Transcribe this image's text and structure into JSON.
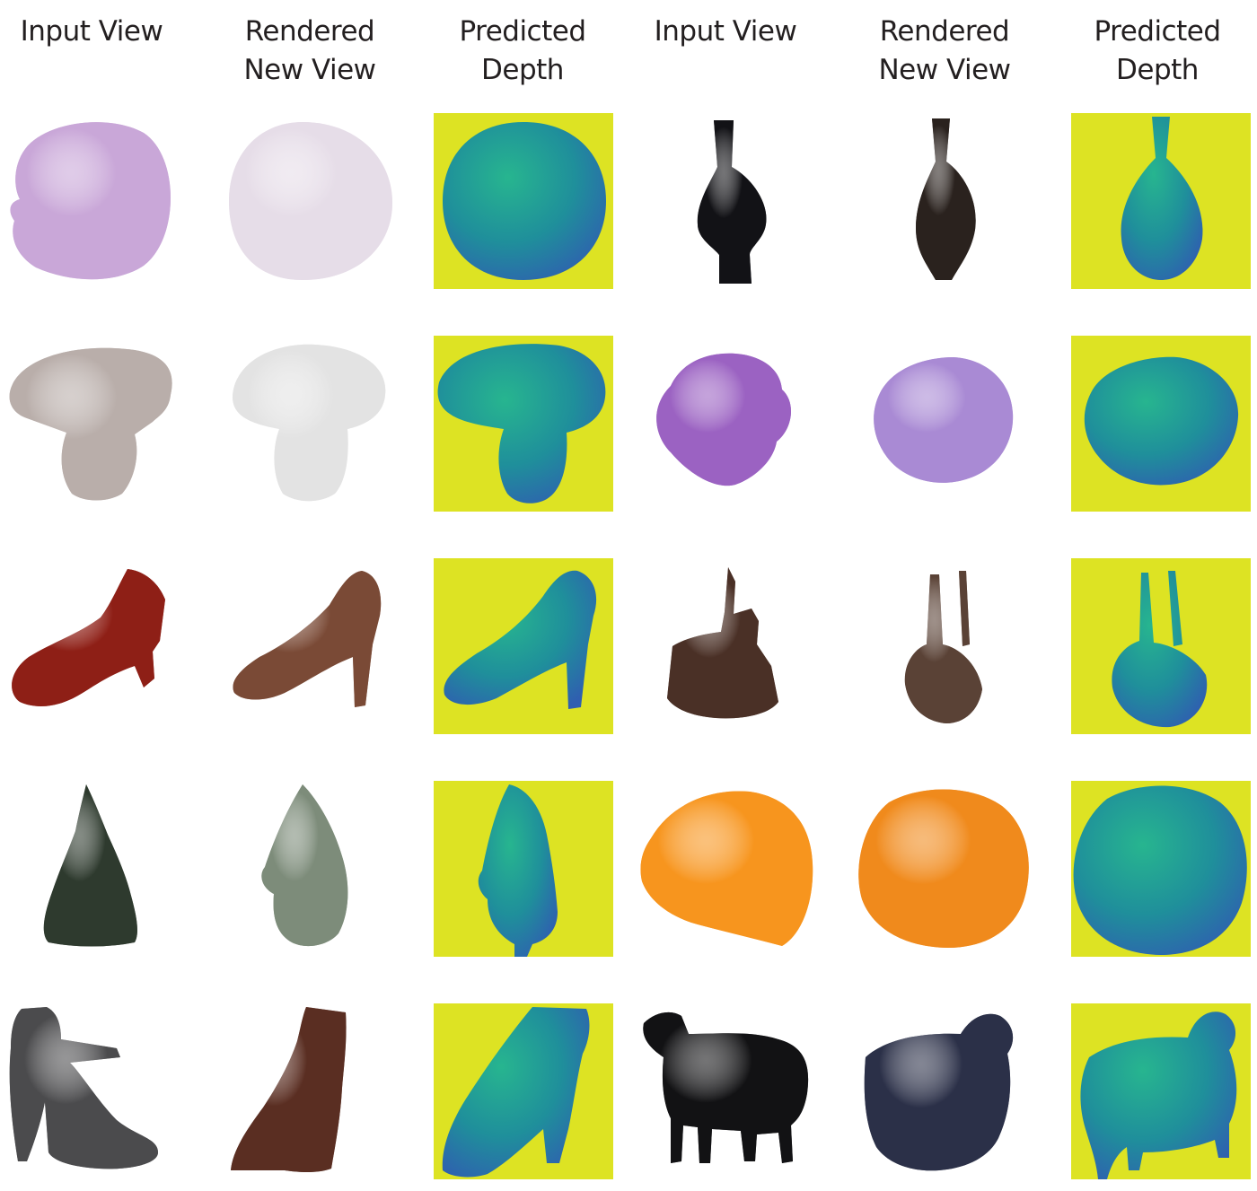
{
  "headers": [
    {
      "lines": [
        "Input View"
      ]
    },
    {
      "lines": [
        "Rendered",
        "New View"
      ]
    },
    {
      "lines": [
        "Predicted",
        "Depth"
      ]
    },
    {
      "lines": [
        "Input View"
      ]
    },
    {
      "lines": [
        "Rendered",
        "New View"
      ]
    },
    {
      "lines": [
        "Predicted",
        "Depth"
      ]
    }
  ],
  "colors": {
    "depth_background": "#dde323",
    "depth_far": "#27b58f",
    "depth_mid": "#1f8f9b",
    "depth_near": "#2f5fb0"
  },
  "rows": [
    {
      "left": {
        "object": "balloon-sphere",
        "input_color": "#c9a7d8",
        "render_color": "#e6dde8"
      },
      "right": {
        "object": "vase",
        "input_color": "#121216",
        "render_color": "#2a221e"
      }
    },
    {
      "left": {
        "object": "mushroom",
        "input_color": "#b9aeaa",
        "render_color": "#e3e3e3"
      },
      "right": {
        "object": "crumpled-paper",
        "input_color": "#9b62c2",
        "render_color": "#a98ad4"
      }
    },
    {
      "left": {
        "object": "high-heel-shoe",
        "input_color": "#8e1f16",
        "render_color": "#7a4a36"
      },
      "right": {
        "object": "handbag",
        "input_color": "#4a3026",
        "render_color": "#5a4236"
      }
    },
    {
      "left": {
        "object": "christmas-tree",
        "input_color": "#2e3a2e",
        "render_color": "#7d8c7a"
      },
      "right": {
        "object": "orange",
        "input_color": "#f7951e",
        "render_color": "#f08a1c"
      }
    },
    {
      "left": {
        "object": "ankle-strap-shoe",
        "input_color": "#4b4b4d",
        "render_color": "#5a2e22"
      },
      "right": {
        "object": "toy-cow",
        "input_color": "#121214",
        "render_color": "#2b3048"
      }
    }
  ]
}
